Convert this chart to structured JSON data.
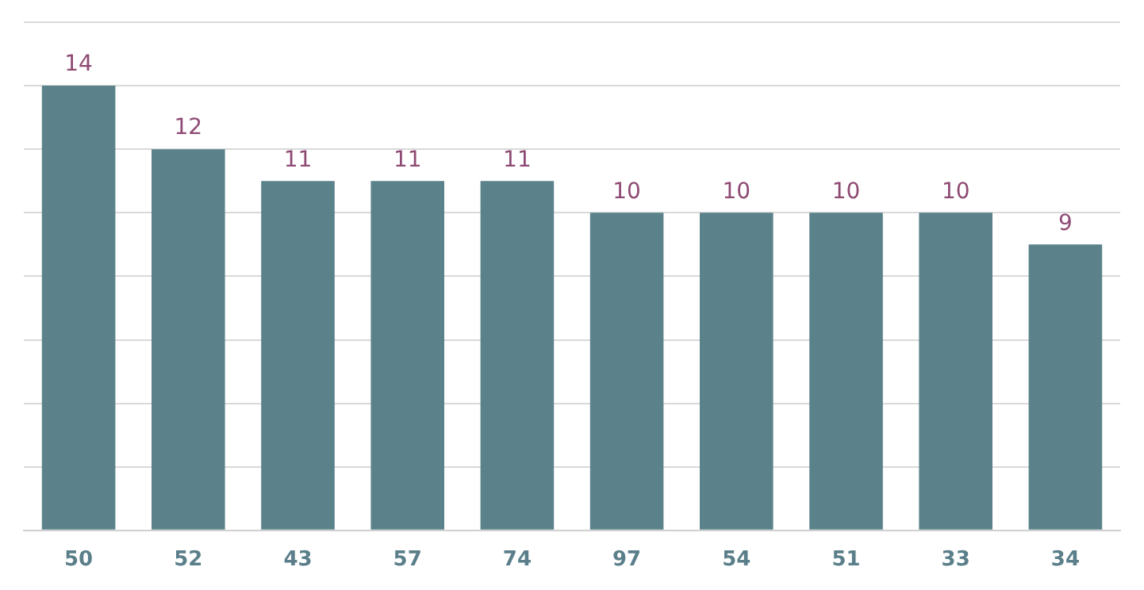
{
  "chart_data": {
    "type": "bar",
    "categories": [
      "50",
      "52",
      "43",
      "57",
      "74",
      "97",
      "54",
      "51",
      "33",
      "34"
    ],
    "values": [
      14,
      12,
      11,
      11,
      11,
      10,
      10,
      10,
      10,
      9
    ],
    "color": "#5b828b",
    "ylim": [
      0,
      16
    ],
    "yticks": [
      {
        "value": 0,
        "label": null
      },
      {
        "value": 2,
        "label": null
      },
      {
        "value": 4,
        "label": null
      },
      {
        "value": 6,
        "label": null
      },
      {
        "value": 8,
        "label": null
      },
      {
        "value": 10,
        "label": null
      },
      {
        "value": 12,
        "label": null
      },
      {
        "value": 14,
        "label": null
      },
      {
        "value": 16,
        "label": null
      }
    ],
    "grid": "y",
    "tick_labels": "x",
    "data_labels": true,
    "legend": false
  }
}
